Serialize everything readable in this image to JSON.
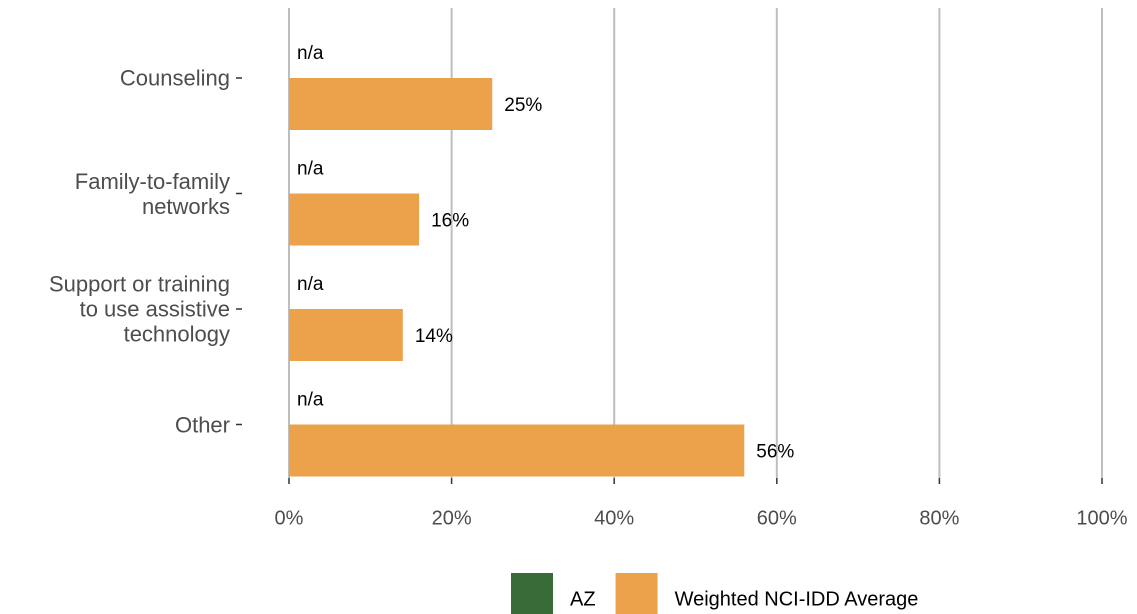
{
  "chart_data": {
    "type": "hbar",
    "categories": [
      "Counseling",
      "Family-to-family\nnetworks",
      "Support or training\nto use assistive\ntechnology",
      "Other"
    ],
    "series": [
      {
        "name": "AZ",
        "color": "#386b38",
        "values": [
          null,
          null,
          null,
          null
        ],
        "value_labels": [
          "n/a",
          "n/a",
          "n/a",
          "n/a"
        ]
      },
      {
        "name": "Weighted NCI-IDD Average",
        "color": "#eca14b",
        "values": [
          25,
          16,
          14,
          56
        ],
        "value_labels": [
          "25%",
          "16%",
          "14%",
          "56%"
        ]
      }
    ],
    "xlim": [
      0,
      100
    ],
    "xticks": [
      {
        "value": 0,
        "label": "0%"
      },
      {
        "value": 20,
        "label": "20%"
      },
      {
        "value": 40,
        "label": "40%"
      },
      {
        "value": 60,
        "label": "60%"
      },
      {
        "value": 80,
        "label": "80%"
      },
      {
        "value": 100,
        "label": "100%"
      }
    ],
    "grid": true,
    "legend": "bottom"
  }
}
